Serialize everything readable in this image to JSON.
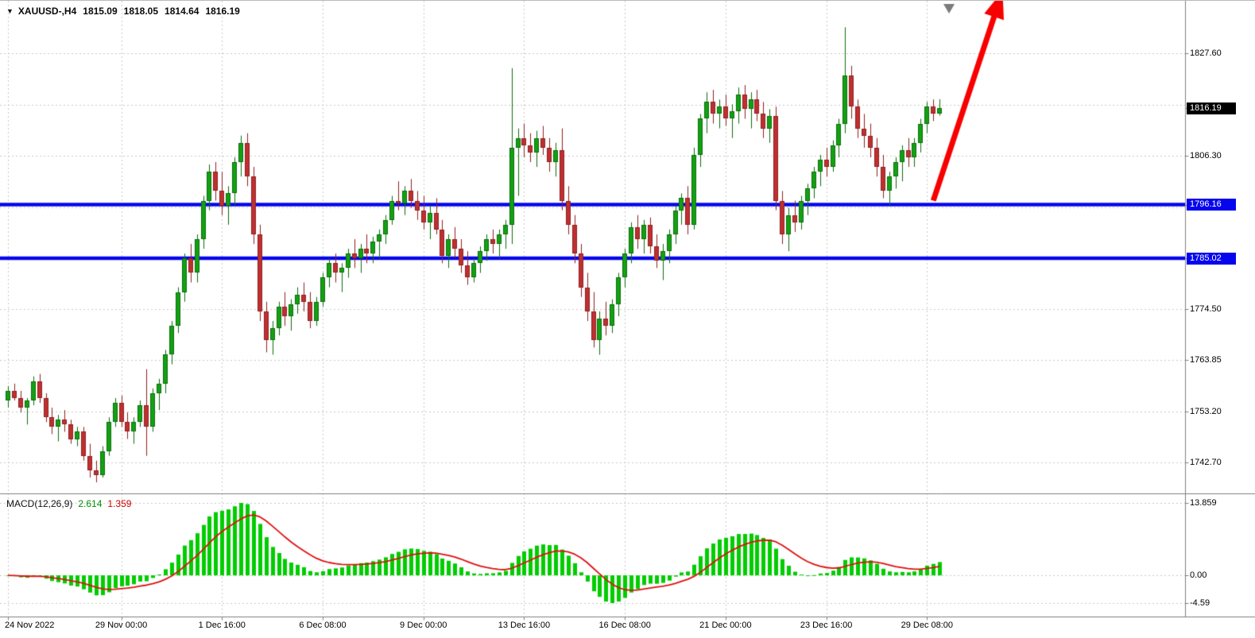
{
  "window": {
    "bg": "#FFFFFF",
    "axis_line_color": "#808080",
    "grid_color": "#c9c9c9"
  },
  "header": {
    "collapse_icon": "▼",
    "symbol_timeframe": "XAUUSD-,H4",
    "ohlc": {
      "open": "1815.09",
      "high": "1818.05",
      "low": "1814.64",
      "close": "1816.19"
    }
  },
  "price_axis": {
    "badges": [
      {
        "value": "1816.19",
        "bg": "#000000",
        "fg": "#FFFFFF",
        "type": "last-price"
      },
      {
        "value": "1796.16",
        "bg": "#0606ee",
        "fg": "#FFFFFF",
        "type": "resistance-line-level"
      },
      {
        "value": "1785.02",
        "bg": "#0606ee",
        "fg": "#FFFFFF",
        "type": "support-line-level"
      }
    ]
  },
  "macd_panel": {
    "label": "MACD(12,26,9)",
    "value": "2.614",
    "signal_value": "1.359",
    "axis_labels": [
      "13.859",
      "0.00",
      "-4.59"
    ]
  },
  "chart_data": {
    "type": "candlestick",
    "title": "XAUUSD H4 candlestick chart with MACD(12,26,9), two horizontal blue support/resistance lines and a red up trend arrow",
    "symbol": "XAUUSD",
    "timeframe": "H4",
    "grid": "dotted",
    "y_range": [
      1736.2,
      1838.5
    ],
    "grid_prices": [
      1827.6,
      1816.95,
      1806.3,
      1795.65,
      1785.02,
      1774.5,
      1763.85,
      1753.2,
      1742.7
    ],
    "price_axis_labels": [
      "1827.60",
      "1806.30",
      "1774.50",
      "1763.85",
      "1753.20",
      "1742.70"
    ],
    "x_labels": [
      {
        "index": 0,
        "text": "24 Nov 2022"
      },
      {
        "index": 18,
        "text": "29 Nov 00:00"
      },
      {
        "index": 34,
        "text": "1 Dec 16:00"
      },
      {
        "index": 50,
        "text": "6 Dec 08:00"
      },
      {
        "index": 66,
        "text": "9 Dec 00:00"
      },
      {
        "index": 82,
        "text": "13 Dec 16:00"
      },
      {
        "index": 98,
        "text": "16 Dec 08:00"
      },
      {
        "index": 114,
        "text": "21 Dec 00:00"
      },
      {
        "index": 130,
        "text": "23 Dec 16:00"
      },
      {
        "index": 146,
        "text": "29 Dec 08:00"
      }
    ],
    "bull_color": "#12a112",
    "bull_edge": "#0b6e0b",
    "bear_color": "#bf3030",
    "bear_edge": "#8f1f1f",
    "last_price": 1816.19,
    "support_resistance_lines": [
      {
        "price": 1796.16,
        "color": "#0606ee",
        "width": 4.5
      },
      {
        "price": 1785.02,
        "color": "#0606ee",
        "width": 4.5
      }
    ],
    "trend_arrow": {
      "from_index": 147,
      "from_price": 1797.0,
      "to_index": 158,
      "to_price": 1840.5,
      "color": "#f80000",
      "width": 7
    },
    "shift_marker_index": 149.5,
    "shift_marker_color": "#7a7a7a",
    "macd": {
      "fast": 12,
      "slow": 26,
      "signal": 9,
      "current_value": 2.614,
      "current_signal": 1.359,
      "histogram_color": "#00cd00",
      "signal_color": "#e01010",
      "axis_values": [
        13.859,
        0.0,
        -4.59
      ]
    },
    "candles_ohlc": [
      [
        1755.5,
        1758.5,
        1754.0,
        1757.5
      ],
      [
        1757.5,
        1759.0,
        1755.5,
        1756.0
      ],
      [
        1756.0,
        1757.5,
        1753.0,
        1754.0
      ],
      [
        1754.0,
        1756.0,
        1750.5,
        1755.5
      ],
      [
        1755.5,
        1760.5,
        1754.5,
        1759.5
      ],
      [
        1759.5,
        1761.0,
        1755.0,
        1756.0
      ],
      [
        1756.0,
        1757.0,
        1751.0,
        1752.0
      ],
      [
        1752.0,
        1754.0,
        1748.5,
        1750.0
      ],
      [
        1750.0,
        1752.5,
        1747.0,
        1751.5
      ],
      [
        1751.5,
        1753.5,
        1749.0,
        1750.5
      ],
      [
        1750.5,
        1751.5,
        1746.5,
        1747.5
      ],
      [
        1747.5,
        1750.0,
        1746.0,
        1749.0
      ],
      [
        1749.0,
        1750.0,
        1743.0,
        1744.0
      ],
      [
        1744.0,
        1746.5,
        1739.5,
        1741.0
      ],
      [
        1741.0,
        1743.0,
        1738.5,
        1740.0
      ],
      [
        1740.0,
        1746.0,
        1739.5,
        1745.0
      ],
      [
        1745.0,
        1752.0,
        1744.0,
        1751.0
      ],
      [
        1751.0,
        1756.0,
        1750.0,
        1755.0
      ],
      [
        1755.0,
        1756.5,
        1750.0,
        1751.0
      ],
      [
        1751.0,
        1753.0,
        1747.5,
        1749.0
      ],
      [
        1749.0,
        1752.0,
        1746.5,
        1751.0
      ],
      [
        1751.0,
        1755.5,
        1750.0,
        1754.5
      ],
      [
        1754.5,
        1762.0,
        1744.0,
        1750.0
      ],
      [
        1750.0,
        1758.0,
        1749.0,
        1757.0
      ],
      [
        1757.0,
        1760.0,
        1753.5,
        1759.0
      ],
      [
        1759.0,
        1766.0,
        1757.0,
        1765.0
      ],
      [
        1765.0,
        1772.0,
        1763.0,
        1771.0
      ],
      [
        1771.0,
        1779.0,
        1769.5,
        1778.0
      ],
      [
        1778.0,
        1786.0,
        1776.0,
        1785.0
      ],
      [
        1785.0,
        1788.0,
        1780.0,
        1782.0
      ],
      [
        1782.0,
        1790.0,
        1780.0,
        1789.0
      ],
      [
        1789.0,
        1798.0,
        1787.0,
        1797.0
      ],
      [
        1797.0,
        1804.5,
        1795.0,
        1803.0
      ],
      [
        1803.0,
        1805.0,
        1797.0,
        1799.0
      ],
      [
        1799.0,
        1803.0,
        1794.0,
        1796.0
      ],
      [
        1796.0,
        1800.0,
        1792.0,
        1798.5
      ],
      [
        1798.5,
        1806.0,
        1796.0,
        1805.0
      ],
      [
        1805.0,
        1810.5,
        1802.0,
        1809.0
      ],
      [
        1809.0,
        1811.0,
        1800.0,
        1802.0
      ],
      [
        1802.0,
        1804.0,
        1788.0,
        1790.0
      ],
      [
        1790.0,
        1792.0,
        1772.0,
        1774.0
      ],
      [
        1774.0,
        1776.0,
        1765.5,
        1768.0
      ],
      [
        1768.0,
        1772.0,
        1765.0,
        1770.5
      ],
      [
        1770.5,
        1776.0,
        1769.0,
        1775.0
      ],
      [
        1775.0,
        1778.0,
        1771.0,
        1773.0
      ],
      [
        1773.0,
        1776.5,
        1770.0,
        1775.5
      ],
      [
        1775.5,
        1779.0,
        1773.5,
        1777.5
      ],
      [
        1777.5,
        1780.0,
        1774.0,
        1776.0
      ],
      [
        1776.0,
        1778.0,
        1770.5,
        1772.0
      ],
      [
        1772.0,
        1777.0,
        1771.0,
        1776.0
      ],
      [
        1776.0,
        1782.0,
        1775.0,
        1781.0
      ],
      [
        1781.0,
        1785.0,
        1779.0,
        1784.0
      ],
      [
        1784.0,
        1786.0,
        1780.0,
        1782.0
      ],
      [
        1782.0,
        1784.0,
        1778.0,
        1783.0
      ],
      [
        1783.0,
        1787.0,
        1781.0,
        1786.0
      ],
      [
        1786.0,
        1789.0,
        1783.0,
        1785.0
      ],
      [
        1785.0,
        1788.0,
        1782.0,
        1787.0
      ],
      [
        1787.0,
        1790.0,
        1784.0,
        1786.0
      ],
      [
        1786.0,
        1789.5,
        1784.0,
        1788.5
      ],
      [
        1788.5,
        1791.0,
        1785.0,
        1790.0
      ],
      [
        1790.0,
        1794.0,
        1788.0,
        1793.0
      ],
      [
        1793.0,
        1798.0,
        1792.0,
        1797.0
      ],
      [
        1797.0,
        1801.0,
        1795.0,
        1796.5
      ],
      [
        1796.5,
        1800.0,
        1794.0,
        1799.0
      ],
      [
        1799.0,
        1801.5,
        1795.5,
        1797.0
      ],
      [
        1797.0,
        1799.0,
        1793.0,
        1795.0
      ],
      [
        1795.0,
        1798.0,
        1791.0,
        1792.5
      ],
      [
        1792.5,
        1796.0,
        1789.0,
        1794.5
      ],
      [
        1794.5,
        1797.5,
        1790.0,
        1791.0
      ],
      [
        1791.0,
        1793.0,
        1784.0,
        1785.5
      ],
      [
        1785.5,
        1790.0,
        1783.0,
        1789.0
      ],
      [
        1789.0,
        1791.5,
        1785.0,
        1787.0
      ],
      [
        1787.0,
        1789.0,
        1782.0,
        1783.5
      ],
      [
        1783.5,
        1786.5,
        1779.5,
        1781.0
      ],
      [
        1781.0,
        1785.0,
        1780.0,
        1784.0
      ],
      [
        1784.0,
        1787.5,
        1782.0,
        1786.5
      ],
      [
        1786.5,
        1790.0,
        1784.5,
        1789.0
      ],
      [
        1789.0,
        1791.0,
        1786.0,
        1788.0
      ],
      [
        1788.0,
        1791.0,
        1785.0,
        1790.0
      ],
      [
        1790.0,
        1793.0,
        1787.0,
        1792.0
      ],
      [
        1792.0,
        1824.5,
        1788.0,
        1808.0
      ],
      [
        1808.0,
        1812.0,
        1798.0,
        1810.0
      ],
      [
        1810.0,
        1813.0,
        1806.0,
        1808.5
      ],
      [
        1808.5,
        1811.0,
        1805.0,
        1807.0
      ],
      [
        1807.0,
        1811.5,
        1804.0,
        1810.0
      ],
      [
        1810.0,
        1812.5,
        1806.5,
        1808.0
      ],
      [
        1808.0,
        1810.0,
        1803.0,
        1805.0
      ],
      [
        1805.0,
        1809.0,
        1802.0,
        1807.5
      ],
      [
        1807.5,
        1812.0,
        1795.0,
        1797.0
      ],
      [
        1797.0,
        1800.0,
        1790.0,
        1792.0
      ],
      [
        1792.0,
        1794.0,
        1784.0,
        1786.0
      ],
      [
        1786.0,
        1788.0,
        1777.0,
        1779.0
      ],
      [
        1779.0,
        1782.0,
        1772.0,
        1774.0
      ],
      [
        1774.0,
        1778.0,
        1766.5,
        1768.0
      ],
      [
        1768.0,
        1774.0,
        1765.0,
        1772.5
      ],
      [
        1772.5,
        1776.0,
        1769.0,
        1771.0
      ],
      [
        1771.0,
        1776.5,
        1769.5,
        1775.5
      ],
      [
        1775.5,
        1782.0,
        1773.0,
        1781.0
      ],
      [
        1781.0,
        1787.0,
        1779.0,
        1786.0
      ],
      [
        1786.0,
        1792.5,
        1784.0,
        1791.5
      ],
      [
        1791.5,
        1794.0,
        1787.0,
        1789.0
      ],
      [
        1789.0,
        1793.0,
        1786.0,
        1792.0
      ],
      [
        1792.0,
        1793.5,
        1786.0,
        1787.5
      ],
      [
        1787.5,
        1790.0,
        1783.0,
        1784.5
      ],
      [
        1784.5,
        1788.0,
        1780.5,
        1786.5
      ],
      [
        1786.5,
        1791.0,
        1784.0,
        1790.0
      ],
      [
        1790.0,
        1796.0,
        1788.0,
        1795.0
      ],
      [
        1795.0,
        1798.5,
        1792.0,
        1797.5
      ],
      [
        1797.5,
        1800.0,
        1790.0,
        1792.0
      ],
      [
        1792.0,
        1808.0,
        1791.0,
        1806.5
      ],
      [
        1806.5,
        1815.0,
        1804.0,
        1814.0
      ],
      [
        1814.0,
        1819.5,
        1811.0,
        1817.5
      ],
      [
        1817.5,
        1820.0,
        1813.0,
        1815.0
      ],
      [
        1815.0,
        1818.0,
        1812.0,
        1816.5
      ],
      [
        1816.5,
        1819.0,
        1812.5,
        1814.0
      ],
      [
        1814.0,
        1817.0,
        1810.0,
        1815.5
      ],
      [
        1815.5,
        1820.5,
        1813.0,
        1819.0
      ],
      [
        1819.0,
        1821.0,
        1814.0,
        1816.0
      ],
      [
        1816.0,
        1819.5,
        1812.0,
        1818.0
      ],
      [
        1818.0,
        1820.0,
        1813.5,
        1815.0
      ],
      [
        1815.0,
        1817.5,
        1810.0,
        1812.0
      ],
      [
        1812.0,
        1816.0,
        1809.0,
        1814.5
      ],
      [
        1814.5,
        1816.5,
        1795.0,
        1797.0
      ],
      [
        1797.0,
        1799.0,
        1788.0,
        1790.0
      ],
      [
        1790.0,
        1795.5,
        1786.5,
        1794.0
      ],
      [
        1794.0,
        1797.0,
        1790.5,
        1792.5
      ],
      [
        1792.5,
        1798.0,
        1791.0,
        1797.0
      ],
      [
        1797.0,
        1800.5,
        1794.0,
        1799.5
      ],
      [
        1799.5,
        1804.0,
        1797.5,
        1803.0
      ],
      [
        1803.0,
        1806.5,
        1800.0,
        1805.5
      ],
      [
        1805.5,
        1808.0,
        1802.0,
        1804.0
      ],
      [
        1804.0,
        1809.5,
        1803.0,
        1808.5
      ],
      [
        1808.5,
        1814.0,
        1806.0,
        1813.0
      ],
      [
        1813.0,
        1833.0,
        1811.0,
        1823.0
      ],
      [
        1823.0,
        1825.0,
        1814.0,
        1816.5
      ],
      [
        1816.5,
        1818.0,
        1810.0,
        1812.0
      ],
      [
        1812.0,
        1815.0,
        1808.0,
        1810.5
      ],
      [
        1810.5,
        1813.0,
        1806.0,
        1808.0
      ],
      [
        1808.0,
        1810.0,
        1802.0,
        1804.0
      ],
      [
        1804.0,
        1806.5,
        1797.5,
        1799.0
      ],
      [
        1799.0,
        1803.0,
        1796.0,
        1802.0
      ],
      [
        1802.0,
        1806.0,
        1799.5,
        1805.0
      ],
      [
        1805.0,
        1808.5,
        1801.0,
        1807.5
      ],
      [
        1807.5,
        1810.0,
        1804.0,
        1806.0
      ],
      [
        1806.0,
        1810.0,
        1804.0,
        1809.0
      ],
      [
        1809.0,
        1814.0,
        1807.0,
        1813.0
      ],
      [
        1813.0,
        1817.5,
        1811.0,
        1816.5
      ],
      [
        1816.5,
        1818.0,
        1813.5,
        1815.0
      ],
      [
        1815.09,
        1818.05,
        1814.64,
        1816.19
      ]
    ]
  }
}
